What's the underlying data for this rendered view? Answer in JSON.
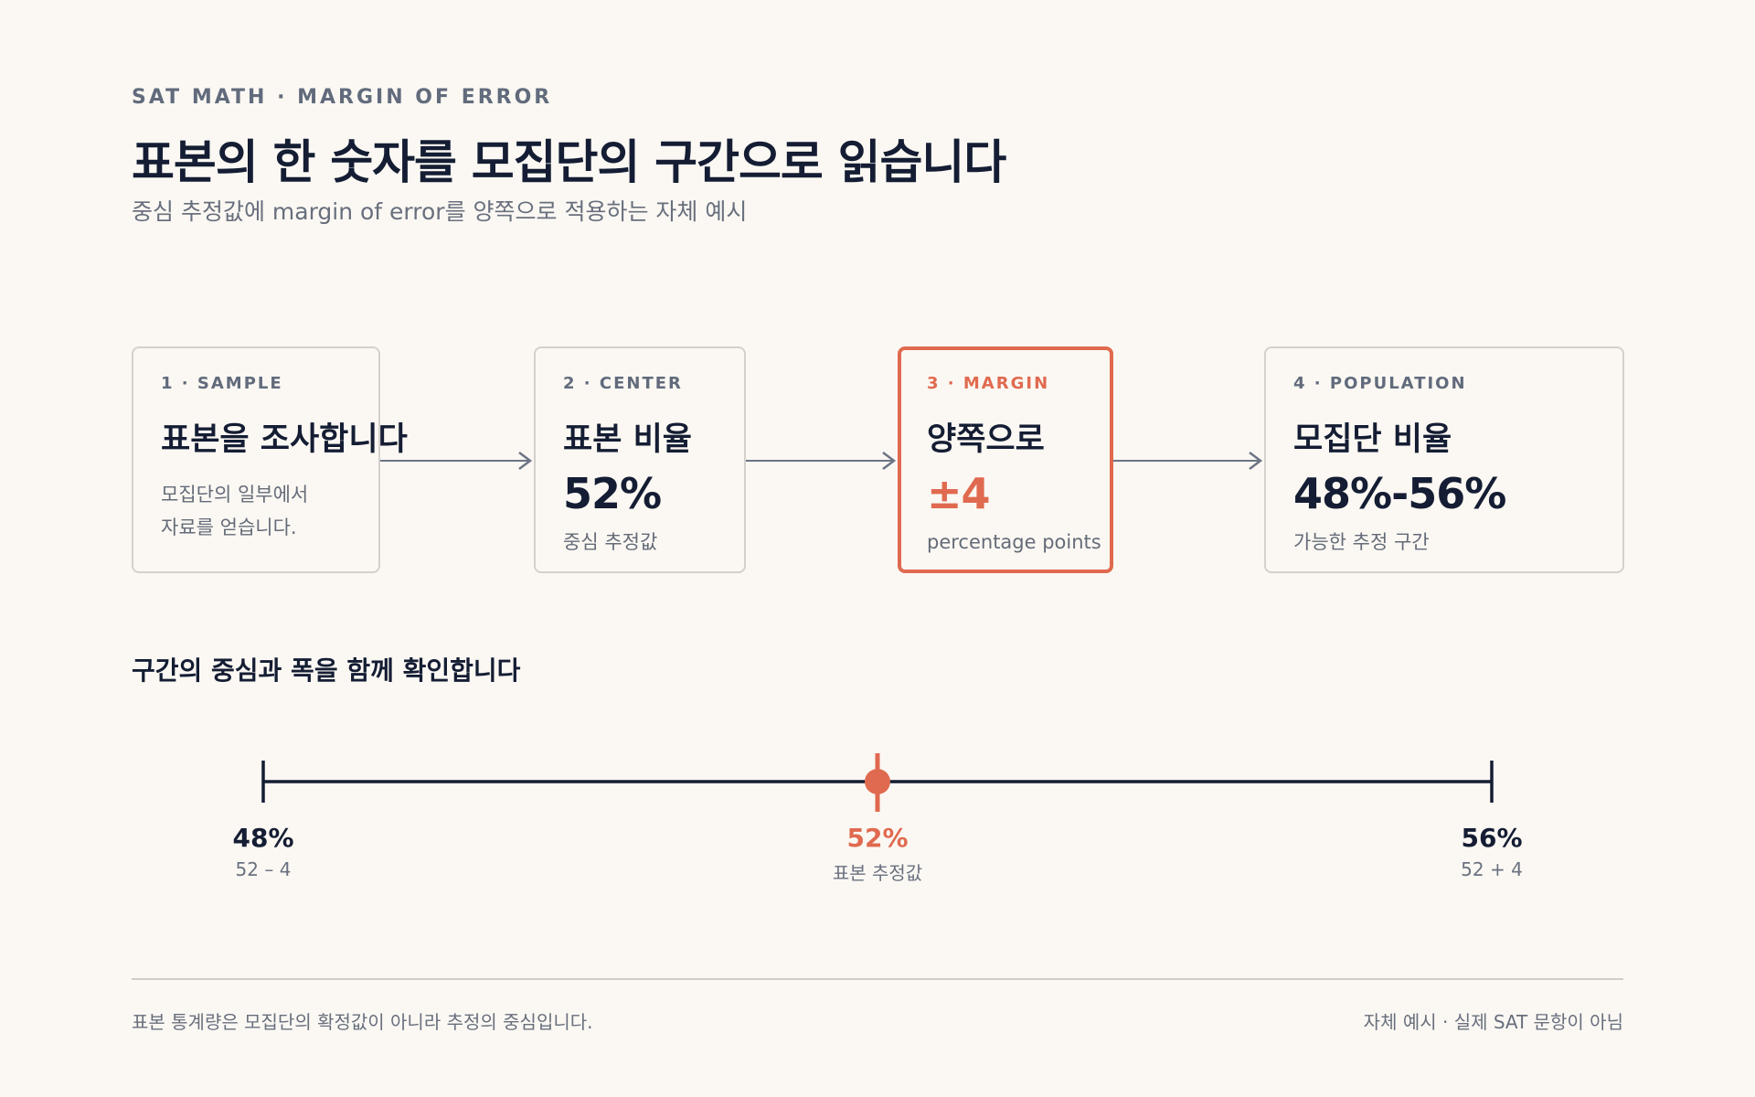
{
  "header": {
    "eyebrow": "SAT MATH · MARGIN OF ERROR",
    "title": "표본의 한 숫자를 모집단의 구간으로 읽습니다",
    "subtitle": "중심 추정값에 margin of error를 양쪽으로 적용하는 자체 예시"
  },
  "steps": [
    {
      "label": "1 · SAMPLE",
      "heading": "표본을 조사합니다",
      "desc_line1": "모집단의 일부에서",
      "desc_line2": "자료를 얻습니다."
    },
    {
      "label": "2 · CENTER",
      "heading": "표본 비율",
      "value": "52%",
      "desc": "중심 추정값"
    },
    {
      "label": "3 · MARGIN",
      "heading": "양쪽으로",
      "value": "±4",
      "desc": "percentage points"
    },
    {
      "label": "4 · POPULATION",
      "heading": "모집단 비율",
      "value": "48%-56%",
      "desc": "가능한 추정 구간"
    }
  ],
  "interval": {
    "section_title": "구간의 중심과 폭을 함께 확인합니다",
    "low": 48,
    "center": 52,
    "high": 56,
    "low_label": "48%",
    "low_note": "52 – 4",
    "center_label": "52%",
    "center_note": "표본 추정값",
    "high_label": "56%",
    "high_note": "52 + 4"
  },
  "footer": {
    "left": "표본 통계량은 모집단의 확정값이 아니라 추정의 중심입니다.",
    "right": "자체 예시 · 실제 SAT 문항이 아님"
  },
  "colors": {
    "accent": "#e06a4f",
    "ink": "#141d33",
    "arrow": "#6c7485"
  }
}
